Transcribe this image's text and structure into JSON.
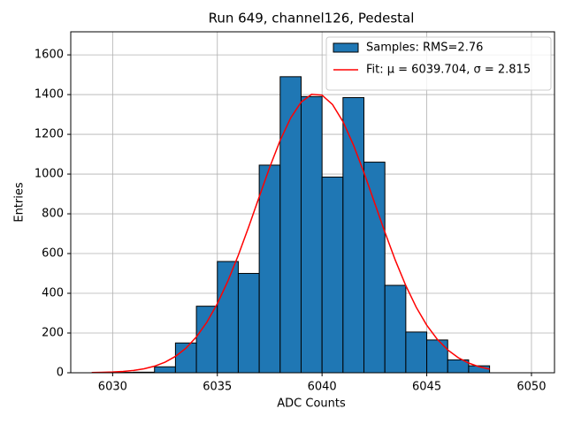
{
  "chart_data": {
    "type": "histogram",
    "title": "Run 649, channel126, Pedestal",
    "xlabel": "ADC Counts",
    "ylabel": "Entries",
    "xlim": [
      6028,
      6051.1
    ],
    "ylim": [
      0,
      1716
    ],
    "xticks": [
      6030,
      6035,
      6040,
      6045,
      6050
    ],
    "yticks": [
      0,
      200,
      400,
      600,
      800,
      1000,
      1200,
      1400,
      1600
    ],
    "grid": true,
    "legend": "upper right",
    "series": [
      {
        "name": "Samples: RMS=2.76",
        "type": "histogram",
        "color": "#1f77b4",
        "edgecolor": "#000000",
        "bins": [
          6029,
          6030,
          6031,
          6032,
          6033,
          6034,
          6035,
          6036,
          6037,
          6038,
          6039,
          6040,
          6041,
          6042,
          6043,
          6044,
          6045,
          6046,
          6047,
          6048
        ],
        "values": [
          0,
          2,
          3,
          30,
          150,
          335,
          560,
          500,
          1045,
          1490,
          1390,
          985,
          1385,
          1060,
          440,
          205,
          165,
          65,
          35
        ]
      },
      {
        "name": "Fit: μ = 6039.704, σ = 2.815",
        "type": "line",
        "color": "#ff0000",
        "x": [
          6029,
          6029.5,
          6030,
          6030.5,
          6031,
          6031.5,
          6032,
          6032.5,
          6033,
          6033.5,
          6034,
          6034.5,
          6035,
          6035.5,
          6036,
          6036.5,
          6037,
          6037.5,
          6038,
          6038.5,
          6039,
          6039.5,
          6040,
          6040.5,
          6041,
          6041.5,
          6042,
          6042.5,
          6043,
          6043.5,
          6044,
          6044.5,
          6045,
          6045.5,
          6046,
          6046.5,
          6047,
          6047.5,
          6048
        ],
        "values": [
          1.0,
          2.0,
          3.7,
          6.7,
          11.8,
          20.1,
          33.2,
          53.1,
          82.4,
          123.8,
          180.3,
          254.4,
          347.9,
          460.7,
          591.2,
          735.1,
          885.7,
          1034.1,
          1169.8,
          1282.2,
          1361.7,
          1401.3,
          1397.3,
          1349.9,
          1263.7,
          1146.3,
          1007.4,
          857.9,
          707.8,
          565.9,
          438.5,
          329.2,
          239.3,
          168.7,
          115.2,
          76.2,
          48.9,
          30.4,
          18.3
        ]
      }
    ]
  }
}
